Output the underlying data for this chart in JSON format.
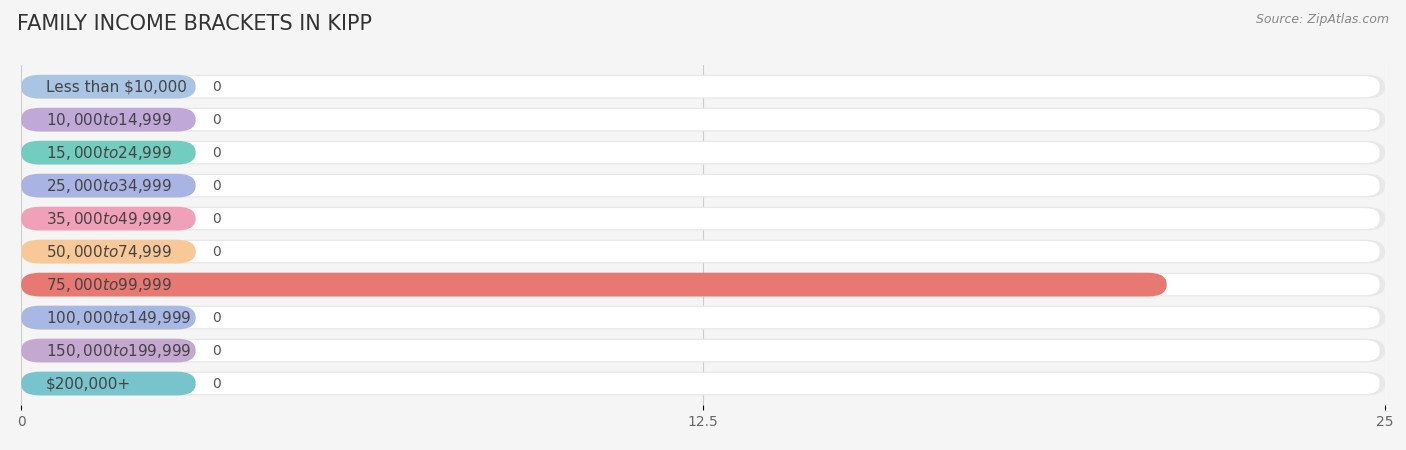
{
  "title": "FAMILY INCOME BRACKETS IN KIPP",
  "source": "Source: ZipAtlas.com",
  "categories": [
    "Less than $10,000",
    "$10,000 to $14,999",
    "$15,000 to $24,999",
    "$25,000 to $34,999",
    "$35,000 to $49,999",
    "$50,000 to $74,999",
    "$75,000 to $99,999",
    "$100,000 to $149,999",
    "$150,000 to $199,999",
    "$200,000+"
  ],
  "values": [
    0,
    0,
    0,
    0,
    0,
    0,
    21,
    0,
    0,
    0
  ],
  "bar_colors": [
    "#aac4e4",
    "#c0a8d8",
    "#72ccc0",
    "#aab4e4",
    "#f0a0b8",
    "#f8c898",
    "#e87872",
    "#a8b8e4",
    "#c4a8d0",
    "#78c4cc"
  ],
  "xlim": [
    0,
    25
  ],
  "xticks": [
    0,
    12.5,
    25
  ],
  "background_color": "#f5f5f5",
  "bar_bg_color": "#e8e8e8",
  "white_inner": "#ffffff",
  "title_fontsize": 15,
  "label_fontsize": 11,
  "value_fontsize": 10,
  "source_fontsize": 9
}
